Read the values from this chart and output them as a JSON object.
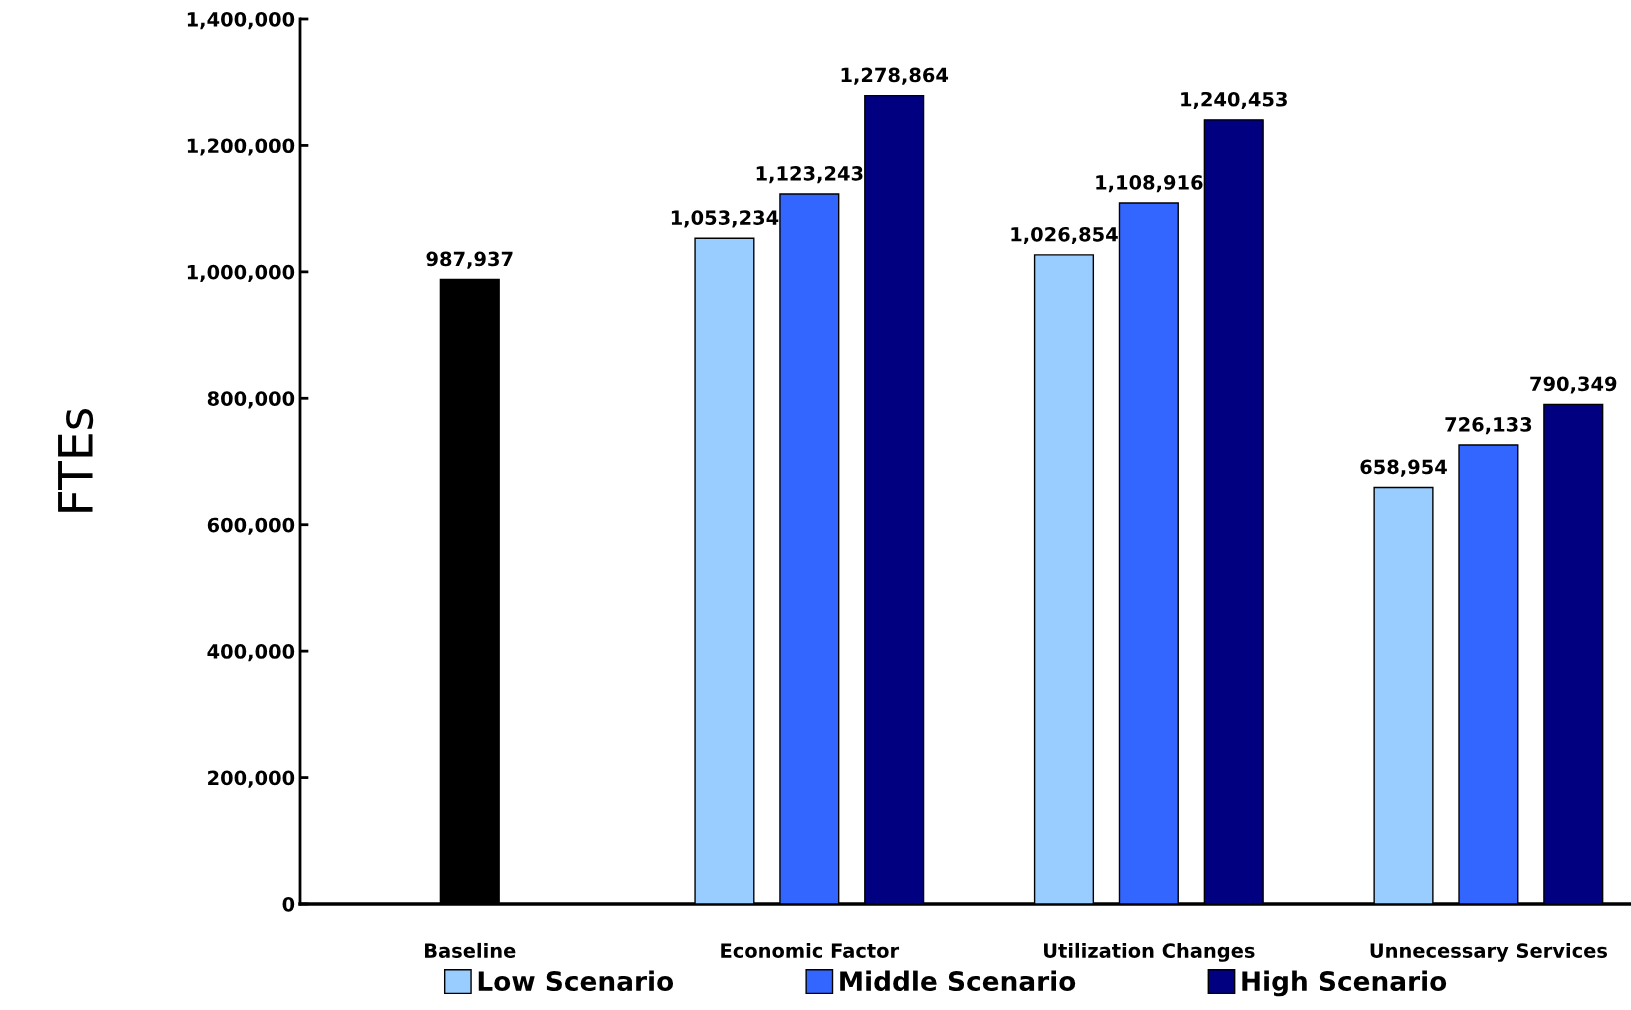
{
  "chart_data": {
    "type": "bar",
    "ylabel": "FTEs",
    "categories": [
      "Baseline",
      "Economic Factor",
      "Utilization Changes",
      "Unnecessary Services"
    ],
    "series": [
      {
        "color": "#000000",
        "values": [
          987937,
          null,
          null,
          null
        ]
      },
      {
        "name": "Low Scenario",
        "color": "#99ccff",
        "values": [
          null,
          1053234,
          1026854,
          658954
        ]
      },
      {
        "name": "Middle Scenario",
        "color": "#3366ff",
        "values": [
          null,
          1123243,
          1108916,
          726133
        ]
      },
      {
        "name": "High Scenario",
        "color": "#000080",
        "values": [
          null,
          1278864,
          1240453,
          790349
        ]
      }
    ],
    "ylim": [
      0,
      1400000
    ],
    "yticks": [
      {
        "value": 0,
        "label": "0"
      },
      {
        "value": 200000,
        "label": "200,000"
      },
      {
        "value": 400000,
        "label": "400,000"
      },
      {
        "value": 600000,
        "label": "600,000"
      },
      {
        "value": 800000,
        "label": "800,000"
      },
      {
        "value": 1000000,
        "label": "1,000,000"
      },
      {
        "value": 1200000,
        "label": "1,200,000"
      },
      {
        "value": 1400000,
        "label": "1,400,000"
      }
    ],
    "value_labels": [
      [
        "987,937",
        null,
        null,
        null
      ],
      [
        null,
        "1,053,234",
        "1,026,854",
        "658,954"
      ],
      [
        null,
        "1,123,243",
        "1,108,916",
        "726,133"
      ],
      [
        null,
        "1,278,864",
        "1,240,453",
        "790,349"
      ]
    ],
    "grid": false,
    "legend": "bottom"
  }
}
